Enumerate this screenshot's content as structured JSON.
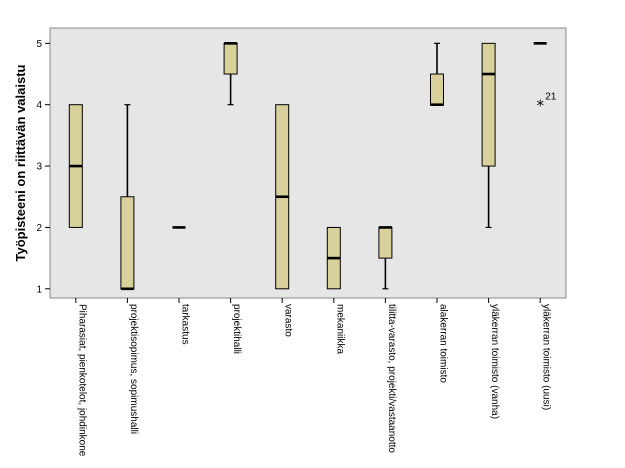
{
  "chart_data": {
    "type": "boxplot",
    "ylabel": "Työpisteeni on riittävän valaistu",
    "ylim": [
      0.85,
      5.25
    ],
    "yticks": [
      1,
      2,
      3,
      4,
      5
    ],
    "grid": false,
    "colors": {
      "plot_bg": "#e6e6e6",
      "box_fill": "#d9d19c",
      "box_stroke": "#000000"
    },
    "categories": [
      "Piharasiat, pienkotelot, johdinkone",
      "projektisopimus, sopimushalli",
      "tarkastus",
      "projektihalli",
      "varasto",
      "mekaniikka",
      "tilitta-varasto, projekti/vastaanotto",
      "alakerran toimisto",
      "yläkerran toimisto (vanha)",
      "yläkerran toimisto (uusi)"
    ],
    "boxes": [
      {
        "whisker_low": 2,
        "q1": 2,
        "median": 3,
        "q3": 4,
        "whisker_high": 4
      },
      {
        "whisker_low": 1,
        "q1": 1,
        "median": 1,
        "q3": 2.5,
        "whisker_high": 4
      },
      {
        "whisker_low": 2,
        "q1": 2,
        "median": 2,
        "q3": 2,
        "whisker_high": 2
      },
      {
        "whisker_low": 4,
        "q1": 4.5,
        "median": 5,
        "q3": 5,
        "whisker_high": 5
      },
      {
        "whisker_low": 1,
        "q1": 1,
        "median": 2.5,
        "q3": 4,
        "whisker_high": 4
      },
      {
        "whisker_low": 1,
        "q1": 1,
        "median": 1.5,
        "q3": 2,
        "whisker_high": 2
      },
      {
        "whisker_low": 1,
        "q1": 1.5,
        "median": 2,
        "q3": 2,
        "whisker_high": 2
      },
      {
        "whisker_low": 4,
        "q1": 4,
        "median": 4,
        "q3": 4.5,
        "whisker_high": 5
      },
      {
        "whisker_low": 2,
        "q1": 3,
        "median": 4.5,
        "q3": 5,
        "whisker_high": 5
      },
      {
        "whisker_low": 5,
        "q1": 5,
        "median": 5,
        "q3": 5,
        "whisker_high": 5
      }
    ],
    "outliers": [
      {
        "category_index": 9,
        "value": 4,
        "marker": "*",
        "label": "21"
      }
    ]
  }
}
